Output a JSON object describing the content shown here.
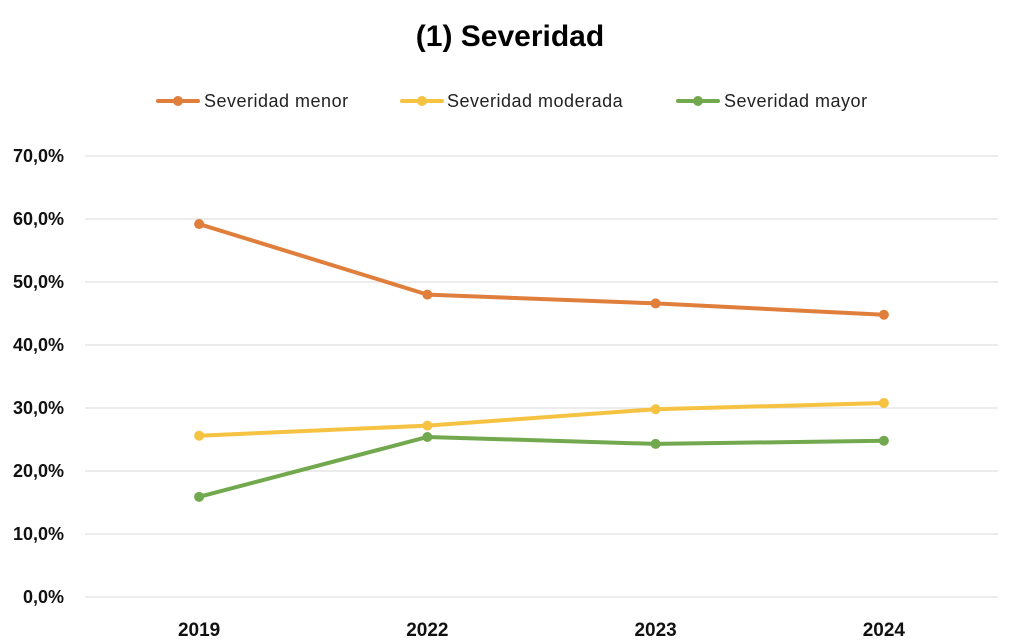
{
  "chart_data": {
    "type": "line",
    "title": "(1) Severidad",
    "xlabel": "",
    "ylabel": "",
    "categories": [
      "2019",
      "2022",
      "2023",
      "2024"
    ],
    "ylim": [
      0,
      70
    ],
    "ytick_values": [
      0,
      10,
      20,
      30,
      40,
      50,
      60,
      70
    ],
    "ytick_labels": [
      "0,0%",
      "10,0%",
      "20,0%",
      "30,0%",
      "40,0%",
      "50,0%",
      "60,0%",
      "70,0%"
    ],
    "grid": true,
    "legend_position": "top",
    "series": [
      {
        "name": "Severidad menor",
        "color": "#E07E3C",
        "values": [
          59.2,
          48.0,
          46.6,
          44.8
        ]
      },
      {
        "name": "Severidad moderada",
        "color": "#F5C242",
        "values": [
          25.6,
          27.2,
          29.8,
          30.8
        ]
      },
      {
        "name": "Severidad mayor",
        "color": "#72A84E",
        "values": [
          15.9,
          25.4,
          24.3,
          24.8
        ]
      }
    ]
  }
}
